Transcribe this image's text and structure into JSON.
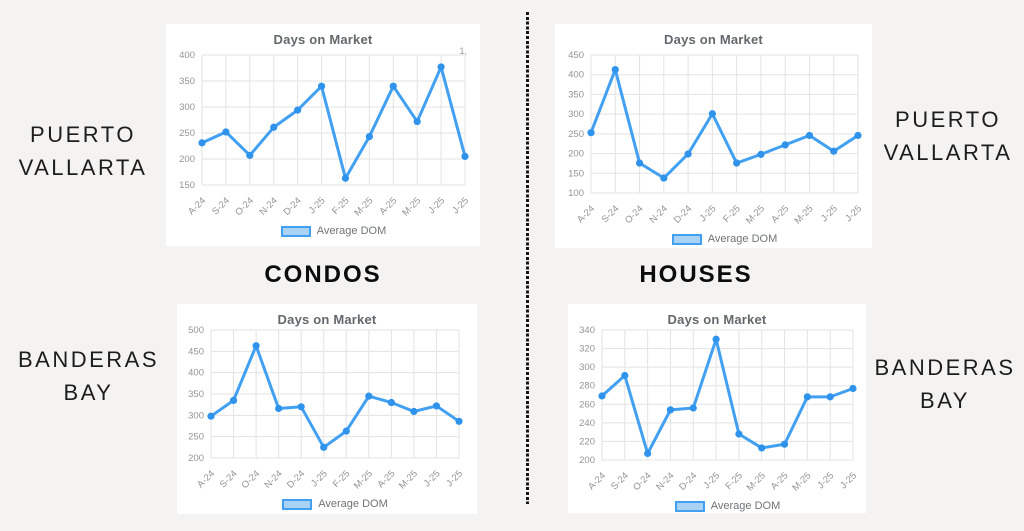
{
  "page": {
    "background_color": "#f4f3f2",
    "card_color": "#ffffff",
    "accent_blue": "#41a0f1",
    "accent_blue_dark": "#2f93ec",
    "legend_fill_blue": "#a9d2f4",
    "grid_color": "#e3e3e3",
    "tick_color": "#949494"
  },
  "side_labels": {
    "top_left": {
      "line1": "PUERTO",
      "line2": "VALLARTA"
    },
    "top_right": {
      "line1": "PUERTO",
      "line2": "VALLARTA"
    },
    "bottom_left": {
      "line1": "BANDERAS",
      "line2": "BAY"
    },
    "bottom_right": {
      "line1": "BANDERAS",
      "line2": "BAY"
    }
  },
  "column_labels": {
    "left": "CONDOS",
    "right": "HOUSES"
  },
  "chart_data": [
    {
      "id": "puerto-vallarta-condos",
      "type": "line",
      "title": "Days on Market",
      "legend": "Average DOM",
      "clipped_right_label": "1,",
      "categories": [
        "A-24",
        "S-24",
        "O-24",
        "N-24",
        "D-24",
        "J-25",
        "F-25",
        "M-25",
        "A-25",
        "M-25",
        "J-25",
        "J-25"
      ],
      "values": [
        231,
        252,
        207,
        261,
        294,
        340,
        163,
        243,
        340,
        272,
        377,
        205
      ],
      "ylim": [
        150,
        400
      ],
      "yticks": [
        150,
        200,
        250,
        300,
        350,
        400
      ],
      "xlabel": "",
      "ylabel": "",
      "grid": true,
      "legend_position": "bottom",
      "line_color": "#41a0f1",
      "point_color": "#2f93ec"
    },
    {
      "id": "puerto-vallarta-houses",
      "type": "line",
      "title": "Days on Market",
      "legend": "Average DOM",
      "categories": [
        "A-24",
        "S-24",
        "O-24",
        "N-24",
        "D-24",
        "J-25",
        "F-25",
        "M-25",
        "A-25",
        "M-25",
        "J-25",
        "J-25"
      ],
      "values": [
        253,
        413,
        176,
        138,
        199,
        301,
        176,
        198,
        222,
        246,
        206,
        246
      ],
      "ylim": [
        100,
        450
      ],
      "yticks": [
        100,
        150,
        200,
        250,
        300,
        350,
        400,
        450
      ],
      "xlabel": "",
      "ylabel": "",
      "grid": true,
      "legend_position": "bottom",
      "line_color": "#41a0f1",
      "point_color": "#2f93ec"
    },
    {
      "id": "banderas-bay-condos",
      "type": "line",
      "title": "Days on Market",
      "legend": "Average DOM",
      "categories": [
        "A-24",
        "S-24",
        "O-24",
        "N-24",
        "D-24",
        "J-25",
        "F-25",
        "M-25",
        "A-25",
        "M-25",
        "J-25",
        "J-25"
      ],
      "values": [
        298,
        335,
        463,
        316,
        320,
        225,
        263,
        345,
        330,
        309,
        322,
        286
      ],
      "ylim": [
        200,
        500
      ],
      "yticks": [
        200,
        250,
        300,
        350,
        400,
        450,
        500
      ],
      "xlabel": "",
      "ylabel": "",
      "grid": true,
      "legend_position": "bottom",
      "line_color": "#41a0f1",
      "point_color": "#2f93ec"
    },
    {
      "id": "banderas-bay-houses",
      "type": "line",
      "title": "Days on Market",
      "legend": "Average DOM",
      "categories": [
        "A-24",
        "S-24",
        "O-24",
        "N-24",
        "D-24",
        "J-25",
        "F-25",
        "M-25",
        "A-25",
        "M-25",
        "J-25",
        "J-25"
      ],
      "values": [
        269,
        291,
        207,
        254,
        256,
        330,
        228,
        213,
        217,
        268,
        268,
        277
      ],
      "ylim": [
        200,
        340
      ],
      "yticks": [
        200,
        220,
        240,
        260,
        280,
        300,
        320,
        340
      ],
      "xlabel": "",
      "ylabel": "",
      "grid": true,
      "legend_position": "bottom",
      "line_color": "#41a0f1",
      "point_color": "#2f93ec"
    }
  ]
}
